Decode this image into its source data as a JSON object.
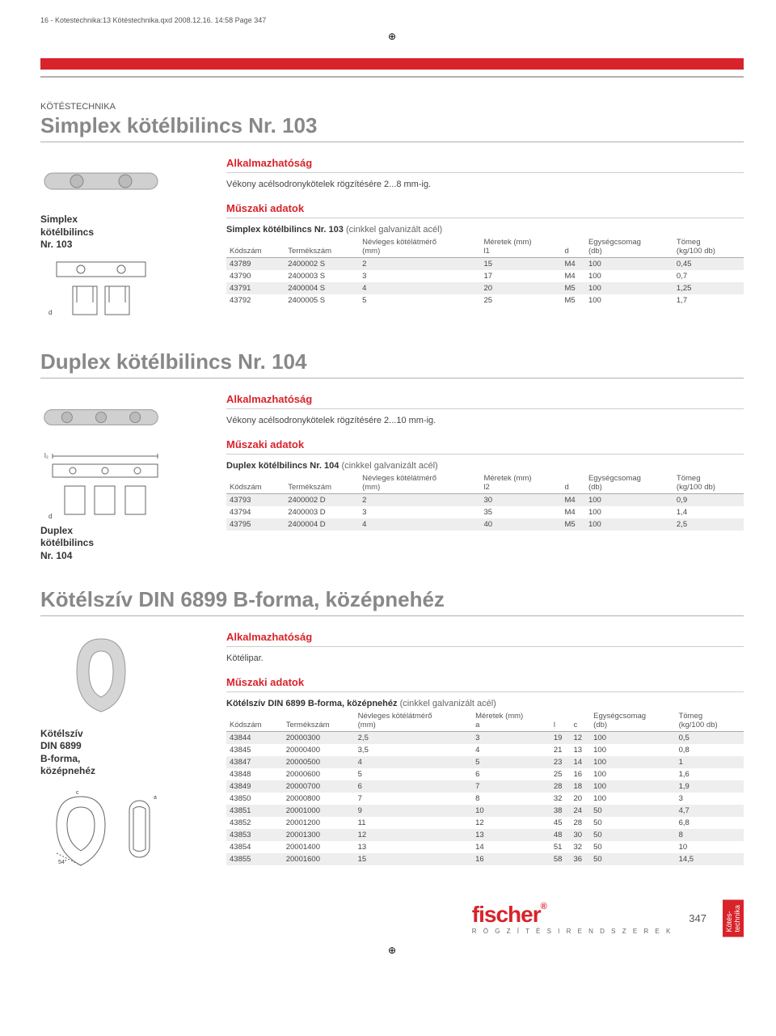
{
  "header_line": "16 - Kotestechnika:13 Kötéstechnika.qxd  2008.12.16.  14:58  Page 347",
  "category": "KÖTÉSTECHNIKA",
  "sections": [
    {
      "main_title": "Simplex kötélbilincs Nr. 103",
      "product_label": "Simplex\nkötélbilincs\nNr. 103",
      "application_title": "Alkalmazhatóság",
      "application_text": "Vékony acélsodronykötelek rögzítésére 2...8 mm-ig.",
      "techdata_title": "Műszaki adatok",
      "table_title_bold": "Simplex kötélbilincs Nr. 103",
      "table_title_paren": "(cinkkel galvanizált acél)",
      "headers": [
        "Kódszám",
        "Termékszám",
        "Névleges kötélátmérő\n(mm)",
        "Méretek (mm)\nl1",
        "d",
        "Egységcsomag\n(db)",
        "Tömeg\n(kg/100 db)"
      ],
      "rows": [
        [
          "43789",
          "2400002 S",
          "2",
          "15",
          "M4",
          "100",
          "0,45"
        ],
        [
          "43790",
          "2400003 S",
          "3",
          "17",
          "M4",
          "100",
          "0,7"
        ],
        [
          "43791",
          "2400004 S",
          "4",
          "20",
          "M5",
          "100",
          "1,25"
        ],
        [
          "43792",
          "2400005 S",
          "5",
          "25",
          "M5",
          "100",
          "1,7"
        ]
      ]
    },
    {
      "main_title": "Duplex kötélbilincs Nr. 104",
      "product_label": "Duplex\nkötélbilincs\nNr. 104",
      "application_title": "Alkalmazhatóság",
      "application_text": "Vékony acélsodronykötelek rögzítésére 2...10 mm-ig.",
      "techdata_title": "Műszaki adatok",
      "table_title_bold": "Duplex kötélbilincs Nr. 104",
      "table_title_paren": "(cinkkel galvanizált acél)",
      "headers": [
        "Kódszám",
        "Termékszám",
        "Névleges kötélátmérő\n(mm)",
        "Méretek (mm)\nl2",
        "d",
        "Egységcsomag\n(db)",
        "Tömeg\n(kg/100 db)"
      ],
      "rows": [
        [
          "43793",
          "2400002 D",
          "2",
          "30",
          "M4",
          "100",
          "0,9"
        ],
        [
          "43794",
          "2400003 D",
          "3",
          "35",
          "M4",
          "100",
          "1,4"
        ],
        [
          "43795",
          "2400004 D",
          "4",
          "40",
          "M5",
          "100",
          "2,5"
        ]
      ]
    },
    {
      "main_title": "Kötélszív DIN 6899 B-forma, középnehéz",
      "product_label": "Kötélszív\nDIN 6899\nB-forma,\nközépnehéz",
      "application_title": "Alkalmazhatóság",
      "application_text": "Kötélipar.",
      "techdata_title": "Műszaki adatok",
      "table_title_bold": "Kötélszív DIN 6899 B-forma, középnehéz",
      "table_title_paren": "(cinkkel galvanizált acél)",
      "headers": [
        "Kódszám",
        "Termékszám",
        "Névleges kötélátmérő\n(mm)",
        "Méretek (mm)\na",
        "l",
        "c",
        "Egységcsomag\n(db)",
        "Tömeg\n(kg/100 db)"
      ],
      "rows": [
        [
          "43844",
          "20000300",
          "2,5",
          "3",
          "19",
          "12",
          "100",
          "0,5"
        ],
        [
          "43845",
          "20000400",
          "3,5",
          "4",
          "21",
          "13",
          "100",
          "0,8"
        ],
        [
          "43847",
          "20000500",
          "4",
          "5",
          "23",
          "14",
          "100",
          "1"
        ],
        [
          "43848",
          "20000600",
          "5",
          "6",
          "25",
          "16",
          "100",
          "1,6"
        ],
        [
          "43849",
          "20000700",
          "6",
          "7",
          "28",
          "18",
          "100",
          "1,9"
        ],
        [
          "43850",
          "20000800",
          "7",
          "8",
          "32",
          "20",
          "100",
          "3"
        ],
        [
          "43851",
          "20001000",
          "9",
          "10",
          "38",
          "24",
          "50",
          "4,7"
        ],
        [
          "43852",
          "20001200",
          "11",
          "12",
          "45",
          "28",
          "50",
          "6,8"
        ],
        [
          "43853",
          "20001300",
          "12",
          "13",
          "48",
          "30",
          "50",
          "8"
        ],
        [
          "43854",
          "20001400",
          "13",
          "14",
          "51",
          "32",
          "50",
          "10"
        ],
        [
          "43855",
          "20001600",
          "15",
          "16",
          "58",
          "36",
          "50",
          "14,5"
        ]
      ]
    }
  ],
  "footer": {
    "brand": "fischer",
    "tagline": "R Ö G Z Í T É S I   R E N D S Z E R E K",
    "page": "347",
    "tab": "Kötés-\ntechnika"
  },
  "colors": {
    "red": "#d8232a",
    "grey_title": "#888888",
    "grey_line": "#b0b0b0",
    "row_alt": "#eeeeee"
  }
}
